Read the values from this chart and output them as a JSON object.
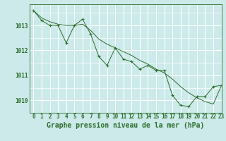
{
  "title": "Graphe pression niveau de la mer (hPa)",
  "bg_color": "#cceaea",
  "grid_color": "#ffffff",
  "line_color": "#2d6e2d",
  "xlim": [
    -0.5,
    23
  ],
  "ylim": [
    1009.5,
    1013.85
  ],
  "yticks": [
    1010,
    1011,
    1012,
    1013
  ],
  "xticks": [
    0,
    1,
    2,
    3,
    4,
    5,
    6,
    7,
    8,
    9,
    10,
    11,
    12,
    13,
    14,
    15,
    16,
    17,
    18,
    19,
    20,
    21,
    22,
    23
  ],
  "series1_x": [
    0,
    1,
    2,
    3,
    4,
    5,
    6,
    7,
    8,
    9,
    10,
    11,
    12,
    13,
    14,
    15,
    16,
    17,
    18,
    19,
    20,
    21,
    22,
    23
  ],
  "series1_y": [
    1013.6,
    1013.2,
    1013.0,
    1013.0,
    1012.3,
    1013.0,
    1013.25,
    1012.65,
    1011.75,
    1011.4,
    1012.1,
    1011.65,
    1011.55,
    1011.25,
    1011.4,
    1011.2,
    1011.2,
    1010.2,
    1009.8,
    1009.75,
    1010.15,
    1010.15,
    1010.55,
    1010.6
  ],
  "series2_x": [
    0,
    1,
    2,
    3,
    4,
    5,
    6,
    7,
    8,
    9,
    10,
    11,
    12,
    13,
    14,
    15,
    16,
    17,
    18,
    19,
    20,
    21,
    22,
    23
  ],
  "series2_y": [
    1013.6,
    1013.3,
    1013.15,
    1013.05,
    1013.0,
    1013.0,
    1013.05,
    1012.8,
    1012.45,
    1012.25,
    1012.1,
    1011.95,
    1011.8,
    1011.6,
    1011.45,
    1011.25,
    1011.1,
    1010.85,
    1010.55,
    1010.3,
    1010.1,
    1009.95,
    1009.85,
    1010.6
  ],
  "title_fontsize": 7,
  "tick_fontsize": 5.5
}
